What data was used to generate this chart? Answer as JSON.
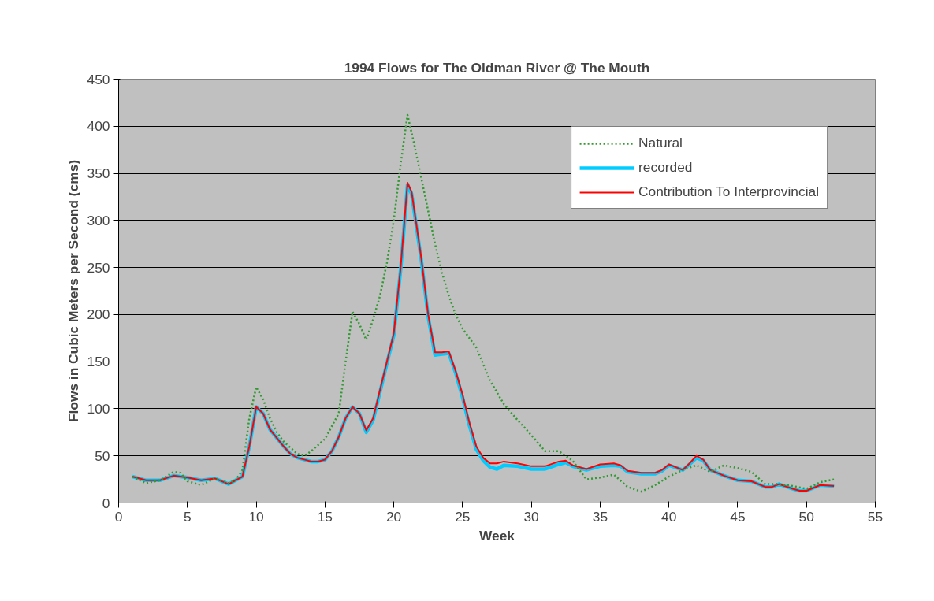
{
  "chart_data": {
    "type": "line",
    "title": "1994 Flows for The Oldman River @ The Mouth",
    "xlabel": "Week",
    "ylabel": "Flows in Cubic Meters per Second (cms)",
    "xlim": [
      0,
      55
    ],
    "xticks": [
      0,
      5,
      10,
      15,
      20,
      25,
      30,
      35,
      40,
      45,
      50,
      55
    ],
    "ylim": [
      0,
      450
    ],
    "yticks": [
      0,
      50,
      100,
      150,
      200,
      250,
      300,
      350,
      400,
      450
    ],
    "grid": "y",
    "legend": "top right",
    "marker": "none",
    "series": [
      {
        "name": "Natural",
        "color": "#339933",
        "line_style": "dotted",
        "x": [
          1,
          2,
          3,
          4,
          4.5,
          5,
          6,
          7,
          8,
          8.5,
          9,
          9.5,
          10,
          10.5,
          11,
          11.5,
          12,
          13,
          13.5,
          14,
          15,
          16,
          16.5,
          17,
          17.5,
          18,
          18.5,
          19,
          19.5,
          20,
          20.5,
          21,
          21.5,
          22,
          22.5,
          23,
          23.5,
          24,
          24.5,
          25,
          26,
          27,
          28,
          29,
          30,
          31,
          32,
          33,
          34,
          35,
          36,
          37,
          38,
          39,
          40,
          41,
          42,
          43,
          44,
          45,
          46,
          47,
          48,
          49,
          50,
          51,
          52
        ],
        "values": [
          28,
          21,
          24,
          33,
          32,
          23,
          19,
          26,
          21,
          24,
          35,
          90,
          123,
          110,
          90,
          75,
          65,
          52,
          50,
          55,
          68,
          95,
          150,
          203,
          190,
          173,
          195,
          220,
          255,
          300,
          360,
          412,
          380,
          345,
          310,
          275,
          245,
          220,
          200,
          185,
          165,
          130,
          105,
          88,
          72,
          55,
          55,
          45,
          25,
          27,
          30,
          17,
          12,
          19,
          28,
          35,
          40,
          33,
          40,
          37,
          33,
          20,
          20,
          18,
          15,
          22,
          25
        ]
      },
      {
        "name": "recorded",
        "color": "#00ccff",
        "line_style": "solid",
        "x": [
          1,
          2,
          3,
          4,
          5,
          6,
          7,
          8,
          9,
          9.5,
          10,
          10.5,
          11,
          12,
          12.5,
          13,
          14,
          14.5,
          15,
          15.5,
          16,
          16.5,
          17,
          17.5,
          18,
          18.5,
          19,
          19.5,
          20,
          20.5,
          21,
          21.3,
          21.5,
          22,
          22.5,
          23,
          23.5,
          24,
          24.5,
          25,
          25.5,
          26,
          26.5,
          27,
          27.5,
          28,
          29,
          30,
          31,
          32,
          32.5,
          33,
          34,
          35,
          36,
          36.5,
          37,
          38,
          39,
          39.5,
          40,
          41,
          41.5,
          42,
          42.5,
          43,
          44,
          45,
          46,
          47,
          47.5,
          48,
          49,
          49.5,
          50,
          51,
          52
        ],
        "values": [
          28,
          24,
          24,
          29,
          27,
          24,
          26,
          20,
          28,
          60,
          102,
          95,
          78,
          60,
          52,
          48,
          44,
          44,
          46,
          55,
          70,
          90,
          102,
          95,
          75,
          88,
          118,
          148,
          178,
          248,
          338,
          328,
          308,
          258,
          198,
          157,
          158,
          159,
          138,
          112,
          82,
          57,
          45,
          38,
          36,
          40,
          39,
          36,
          36,
          41,
          43,
          39,
          35,
          39,
          40,
          39,
          33,
          31,
          31,
          34,
          40,
          35,
          41,
          48,
          45,
          35,
          29,
          24,
          23,
          17,
          17,
          20,
          15,
          13,
          13,
          19,
          18
        ]
      },
      {
        "name": "Contribution To Interprovincial",
        "color": "#ff0000",
        "line_style": "solid",
        "x": [
          1,
          2,
          3,
          4,
          5,
          6,
          7,
          8,
          9,
          9.5,
          10,
          10.5,
          11,
          12,
          12.5,
          13,
          14,
          14.5,
          15,
          15.5,
          16,
          16.5,
          17,
          17.5,
          18,
          18.5,
          19,
          19.5,
          20,
          20.5,
          21,
          21.3,
          21.5,
          22,
          22.5,
          23,
          23.5,
          24,
          24.5,
          25,
          25.5,
          26,
          26.5,
          27,
          27.5,
          28,
          29,
          30,
          31,
          32,
          32.5,
          33,
          34,
          35,
          36,
          36.5,
          37,
          38,
          39,
          39.5,
          40,
          41,
          41.5,
          42,
          42.5,
          43,
          44,
          45,
          46,
          47,
          47.5,
          48,
          49,
          49.5,
          50,
          51,
          52
        ],
        "values": [
          28,
          24,
          24,
          29,
          27,
          24,
          26,
          20,
          28,
          60,
          102,
          95,
          78,
          60,
          52,
          48,
          44,
          44,
          46,
          55,
          70,
          90,
          102,
          95,
          77,
          90,
          120,
          150,
          180,
          250,
          340,
          330,
          310,
          260,
          200,
          160,
          160,
          161,
          140,
          115,
          85,
          60,
          48,
          42,
          42,
          44,
          42,
          39,
          39,
          44,
          45,
          40,
          36,
          41,
          42,
          40,
          34,
          32,
          32,
          35,
          41,
          35,
          42,
          50,
          46,
          35,
          29,
          24,
          23,
          17,
          17,
          20,
          15,
          13,
          13,
          19,
          18
        ]
      }
    ]
  }
}
